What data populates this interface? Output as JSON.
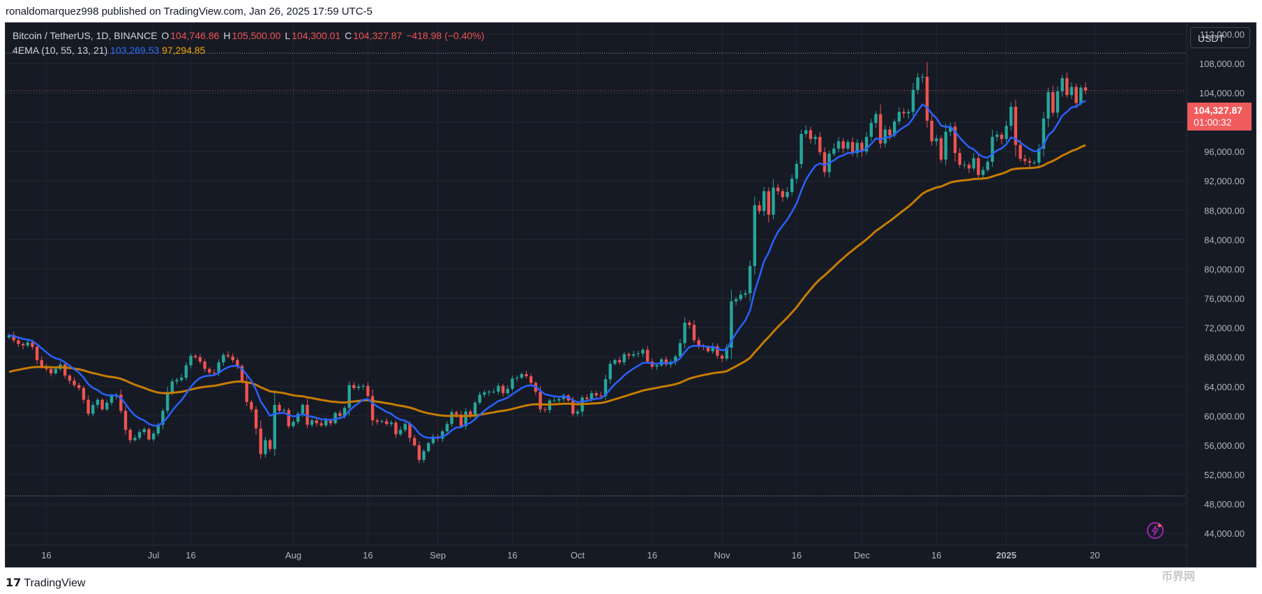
{
  "publisher": "ronaldomarquez998 published on TradingView.com, Jan 26, 2025 17:59 UTC-5",
  "symbol": "Bitcoin / TetherUS, 1D, BINANCE",
  "ohlc": {
    "o_label": "O",
    "o": "104,746.86",
    "h_label": "H",
    "h": "105,500.00",
    "l_label": "L",
    "l": "104,300.01",
    "c_label": "C",
    "c": "104,327.87",
    "chg": "−418.98 (−0.40%)"
  },
  "indicator": {
    "name": "4EMA (10, 55, 13, 21)",
    "fast": "103,269.53",
    "slow": "97,294.85",
    "fast_color": "#2962ff",
    "slow_color": "#ff9800"
  },
  "currency": "USDT",
  "last_price": {
    "value": "104,327.87",
    "countdown": "01:00:32",
    "color": "#f05b5b"
  },
  "footer": {
    "brand": "TradingView",
    "watermark": "币界网"
  },
  "chart_data": {
    "type": "candlestick",
    "x_ticks": [
      "16",
      "Jul",
      "16",
      "Aug",
      "16",
      "Sep",
      "16",
      "Oct",
      "16",
      "Nov",
      "16",
      "Dec",
      "16",
      "2025",
      "20"
    ],
    "y_ticks": [
      "112,000.00",
      "108,000.00",
      "104,000.00",
      "100,000.00",
      "96,000.00",
      "92,000.00",
      "88,000.00",
      "84,000.00",
      "80,000.00",
      "76,000.00",
      "72,000.00",
      "68,000.00",
      "64,000.00",
      "60,000.00",
      "56,000.00",
      "52,000.00",
      "48,000.00",
      "44,000.00"
    ],
    "ylim": [
      42500,
      113500
    ],
    "date_range": [
      "2024-06-08",
      "2025-01-26"
    ],
    "range_lines": [
      109400,
      49100
    ],
    "up_color": "#26a69a",
    "down_color": "#ef5350",
    "closes": [
      71000,
      70300,
      69800,
      69600,
      70000,
      69400,
      67600,
      66700,
      66400,
      65800,
      66400,
      67000,
      65500,
      64800,
      64200,
      63800,
      62200,
      60300,
      61500,
      62200,
      60900,
      61800,
      62700,
      62900,
      60700,
      58100,
      56700,
      57000,
      57800,
      58200,
      56800,
      57600,
      58800,
      60700,
      63200,
      64700,
      64900,
      65200,
      66900,
      68200,
      68000,
      67400,
      66400,
      65900,
      65800,
      67300,
      68300,
      68100,
      67600,
      66800,
      64700,
      61900,
      60900,
      58300,
      54800,
      56700,
      55500,
      61500,
      60700,
      60800,
      58600,
      59200,
      60300,
      61500,
      58800,
      59400,
      59000,
      58700,
      59400,
      59000,
      60400,
      60000,
      61100,
      64200,
      63800,
      64000,
      64100,
      62700,
      59400,
      59200,
      59300,
      58900,
      59100,
      57500,
      58100,
      58900,
      57000,
      56000,
      54000,
      55200,
      56300,
      57200,
      56900,
      57900,
      58900,
      60500,
      60200,
      58600,
      60600,
      60000,
      61800,
      62900,
      63200,
      63300,
      63300,
      64100,
      63100,
      63700,
      65100,
      65200,
      65700,
      65400,
      64500,
      63300,
      60900,
      60800,
      62100,
      62100,
      62300,
      62800,
      62100,
      60300,
      60600,
      62500,
      62300,
      63100,
      62800,
      62700,
      65000,
      67100,
      67600,
      67300,
      68400,
      68200,
      68400,
      68500,
      69000,
      67400,
      66700,
      66900,
      67700,
      67000,
      67400,
      68100,
      69900,
      72700,
      72400,
      70300,
      69500,
      69400,
      68800,
      69500,
      68200,
      67800,
      69300,
      75600,
      75900,
      76500,
      76700,
      80400,
      88700,
      87900,
      90600,
      87400,
      91100,
      90600,
      89800,
      90500,
      92300,
      94300,
      98400,
      98900,
      97700,
      98000,
      95900,
      93200,
      95700,
      96400,
      97400,
      96400,
      97300,
      95800,
      97200,
      96000,
      98000,
      99900,
      101100,
      97100,
      99000,
      98200,
      100100,
      101400,
      101200,
      101400,
      104400,
      106100,
      106200,
      100200,
      97400,
      97800,
      94900,
      98700,
      99400,
      95800,
      94200,
      94200,
      93700,
      95100,
      92800,
      93500,
      94600,
      98000,
      98300,
      97700,
      99500,
      102100,
      96900,
      95000,
      94700,
      94500,
      94500,
      96400,
      100500,
      104100,
      101300,
      104200,
      106000,
      103700,
      104800,
      102600,
      104700,
      104300
    ]
  }
}
